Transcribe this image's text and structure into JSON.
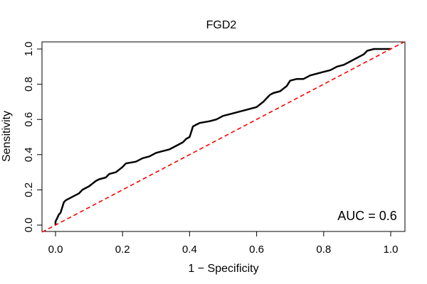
{
  "chart_data": {
    "type": "line",
    "title": "FGD2",
    "xlabel": "1 − Specificity",
    "ylabel": "Sensitivity",
    "xlim": [
      0,
      1
    ],
    "ylim": [
      0,
      1
    ],
    "xticks": [
      "0.0",
      "0.2",
      "0.4",
      "0.6",
      "0.8",
      "1.0"
    ],
    "yticks": [
      "0.0",
      "0.2",
      "0.4",
      "0.6",
      "0.8",
      "1.0"
    ],
    "annotation": "AUC = 0.6",
    "series": [
      {
        "name": "ROC curve",
        "color": "#000000",
        "x": [
          0.0,
          0.0,
          0.005,
          0.01,
          0.015,
          0.02,
          0.025,
          0.03,
          0.04,
          0.05,
          0.06,
          0.07,
          0.08,
          0.09,
          0.1,
          0.12,
          0.13,
          0.15,
          0.16,
          0.18,
          0.2,
          0.21,
          0.24,
          0.26,
          0.28,
          0.3,
          0.32,
          0.34,
          0.36,
          0.38,
          0.39,
          0.4,
          0.405,
          0.41,
          0.42,
          0.43,
          0.46,
          0.48,
          0.5,
          0.52,
          0.54,
          0.56,
          0.58,
          0.6,
          0.62,
          0.63,
          0.64,
          0.65,
          0.67,
          0.69,
          0.7,
          0.72,
          0.74,
          0.76,
          0.78,
          0.8,
          0.82,
          0.84,
          0.86,
          0.88,
          0.9,
          0.92,
          0.93,
          0.95,
          0.97,
          1.0
        ],
        "y": [
          0.0,
          0.02,
          0.04,
          0.06,
          0.07,
          0.1,
          0.13,
          0.14,
          0.15,
          0.16,
          0.17,
          0.18,
          0.2,
          0.21,
          0.22,
          0.25,
          0.26,
          0.27,
          0.29,
          0.3,
          0.33,
          0.35,
          0.36,
          0.38,
          0.39,
          0.41,
          0.42,
          0.43,
          0.45,
          0.47,
          0.49,
          0.5,
          0.53,
          0.56,
          0.57,
          0.58,
          0.59,
          0.6,
          0.62,
          0.63,
          0.64,
          0.65,
          0.66,
          0.67,
          0.7,
          0.72,
          0.74,
          0.75,
          0.76,
          0.79,
          0.82,
          0.83,
          0.83,
          0.85,
          0.86,
          0.87,
          0.88,
          0.9,
          0.91,
          0.93,
          0.95,
          0.97,
          0.99,
          1.0,
          1.0,
          1.0
        ]
      },
      {
        "name": "Chance line",
        "color": "#ff0000",
        "dashed": true,
        "x": [
          0,
          1
        ],
        "y": [
          0,
          1
        ]
      }
    ]
  }
}
